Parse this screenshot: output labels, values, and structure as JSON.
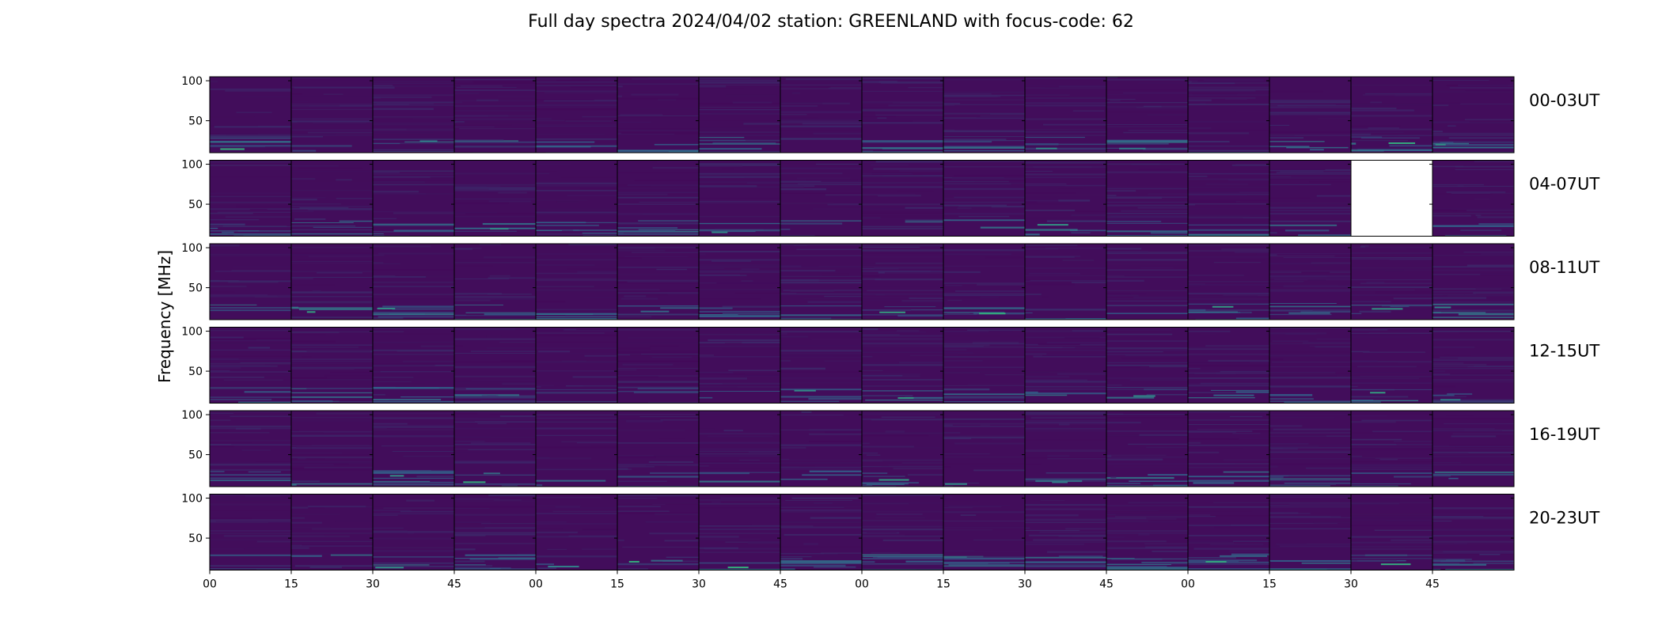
{
  "chart_data": {
    "type": "heatmap",
    "title": "Full day spectra 2024/04/02 station: GREENLAND with focus-code: 62",
    "ylabel": "Frequency [MHz]",
    "xlabel": "",
    "ylim": [
      10,
      105
    ],
    "yticks": [
      "100",
      "50"
    ],
    "xticks": [
      "00",
      "15",
      "30",
      "45",
      "00",
      "15",
      "30",
      "45",
      "00",
      "15",
      "30",
      "45",
      "00",
      "15",
      "30",
      "45"
    ],
    "panels_per_row": 16,
    "rows": [
      {
        "label": "00-03UT",
        "missing": []
      },
      {
        "label": "04-07UT",
        "missing": [
          14
        ]
      },
      {
        "label": "08-11UT",
        "missing": []
      },
      {
        "label": "12-15UT",
        "missing": []
      },
      {
        "label": "16-19UT",
        "missing": []
      },
      {
        "label": "20-23UT",
        "missing": []
      }
    ],
    "colormap": {
      "low": "#440154",
      "mid": "#31688e",
      "high": "#35b779"
    },
    "grid": false
  }
}
